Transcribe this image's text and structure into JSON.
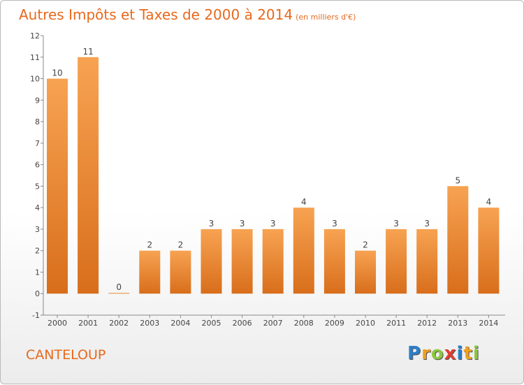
{
  "chart_data": {
    "type": "bar",
    "title": "Autres Impôts et Taxes de 2000 à 2014",
    "subtitle": "(en milliers d'€)",
    "categories": [
      "2000",
      "2001",
      "2002",
      "2003",
      "2004",
      "2005",
      "2006",
      "2007",
      "2008",
      "2009",
      "2010",
      "2011",
      "2012",
      "2013",
      "2014"
    ],
    "values": [
      10,
      11,
      0,
      2,
      2,
      3,
      3,
      3,
      4,
      3,
      2,
      3,
      3,
      5,
      4
    ],
    "y_ticks": [
      "-1",
      "0",
      "1",
      "2",
      "3",
      "4",
      "5",
      "6",
      "7",
      "8",
      "9",
      "10",
      "11",
      "12"
    ],
    "ylim": [
      -1,
      12
    ],
    "grid": false,
    "bar_color": "#f0892e"
  },
  "footer": {
    "commune": "CANTELOUP",
    "logo_letters": [
      "P",
      "r",
      "o",
      "x",
      "i",
      "t",
      "i"
    ],
    "logo_colors": [
      "#2a7fc9",
      "#f0a020",
      "#8cc63e",
      "#e03c31",
      "#2a7fc9",
      "#f0a020",
      "#8cc63e"
    ]
  }
}
